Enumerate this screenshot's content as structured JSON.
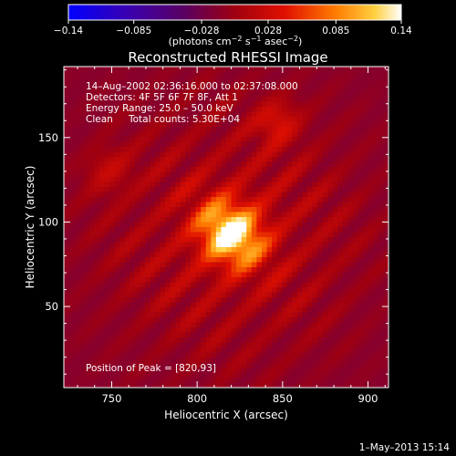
{
  "colorbar": {
    "tick_labels": [
      "−0.14",
      "−0.085",
      "−0.028",
      "0.028",
      "0.085",
      "0.14"
    ],
    "tick_values": [
      -0.14,
      -0.085,
      -0.028,
      0.028,
      0.085,
      0.14
    ],
    "range": [
      -0.14,
      0.14
    ],
    "units_label": "(photons cm",
    "units_exp1": "−2",
    "units_mid": " s",
    "units_exp2": "−1",
    "units_mid2": " asec",
    "units_exp3": "−2",
    "units_close": ")",
    "colors": [
      "#0000ff",
      "#4a007a",
      "#7a0030",
      "#c10000",
      "#ff5a00",
      "#ffb000",
      "#ffffe0"
    ]
  },
  "chart_data": {
    "type": "heatmap",
    "title": "Reconstructed RHESSI Image",
    "xlabel": "Heliocentric X (arcsec)",
    "ylabel": "Heliocentric Y (arcsec)",
    "xlim": [
      722,
      912
    ],
    "ylim": [
      2,
      192
    ],
    "x_ticks": [
      750,
      800,
      850,
      900
    ],
    "y_ticks": [
      50,
      100,
      150
    ],
    "x_tick_labels": [
      "750",
      "800",
      "850",
      "900"
    ],
    "y_tick_labels": [
      "50",
      "100",
      "150"
    ],
    "annotations": {
      "time_range": "14–Aug–2002 02:36:16.000 to 02:37:08.000",
      "detectors": "Detectors: 4F 5F 6F 7F 8F, Att 1",
      "energy": "Energy Range: 25.0 – 50.0 keV",
      "clean": "Clean",
      "counts": "Total counts: 5.30E+04",
      "peak": "Position of Peak = [820,93]"
    },
    "peak_position": [
      820,
      93
    ],
    "peak_value": 0.14
  },
  "footer": {
    "date": "1–May–2013 15:14"
  }
}
